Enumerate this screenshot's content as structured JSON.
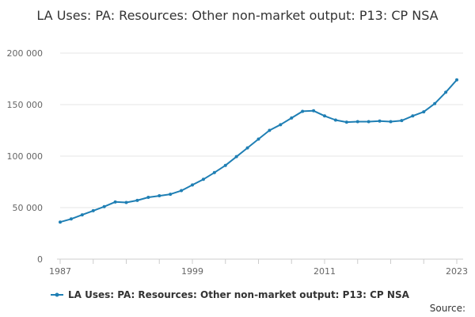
{
  "title": "LA Uses: PA: Resources: Other non-market output: P13: CP NSA",
  "legend_label": "LA Uses: PA: Resources: Other non-market output: P13: CP NSA",
  "source_label": "Source:",
  "colors": {
    "series": "#1f7fb4",
    "grid": "#e6e6e6",
    "axis": "#cccccc",
    "text": "#666666"
  },
  "chart_data": {
    "type": "line",
    "title": "LA Uses: PA: Resources: Other non-market output: P13: CP NSA",
    "xlabel": "",
    "ylabel": "",
    "xlim": [
      1987,
      2023
    ],
    "ylim": [
      0,
      200000
    ],
    "yticks": [
      0,
      50000,
      100000,
      150000,
      200000
    ],
    "ytick_labels": [
      "0",
      "50 000",
      "100 000",
      "150 000",
      "200 000"
    ],
    "xtick_labels": [
      "1987",
      "1999",
      "2011",
      "2023"
    ],
    "grid": true,
    "legend": "bottom",
    "series": [
      {
        "name": "LA Uses: PA: Resources: Other non-market output: P13: CP NSA",
        "x": [
          1987,
          1988,
          1989,
          1990,
          1991,
          1992,
          1993,
          1994,
          1995,
          1996,
          1997,
          1998,
          1999,
          2000,
          2001,
          2002,
          2003,
          2004,
          2005,
          2006,
          2007,
          2008,
          2009,
          2010,
          2011,
          2012,
          2013,
          2014,
          2015,
          2016,
          2017,
          2018,
          2019,
          2020,
          2021,
          2022,
          2023
        ],
        "values": [
          36000,
          39000,
          43000,
          47000,
          51000,
          55500,
          55000,
          57000,
          60000,
          61500,
          63000,
          66500,
          72000,
          77500,
          84000,
          91000,
          99500,
          108000,
          116500,
          125000,
          130500,
          137000,
          143500,
          144000,
          139000,
          135000,
          133000,
          133500,
          133500,
          134000,
          133500,
          134500,
          139000,
          143000,
          151000,
          162000,
          174000
        ]
      }
    ]
  }
}
